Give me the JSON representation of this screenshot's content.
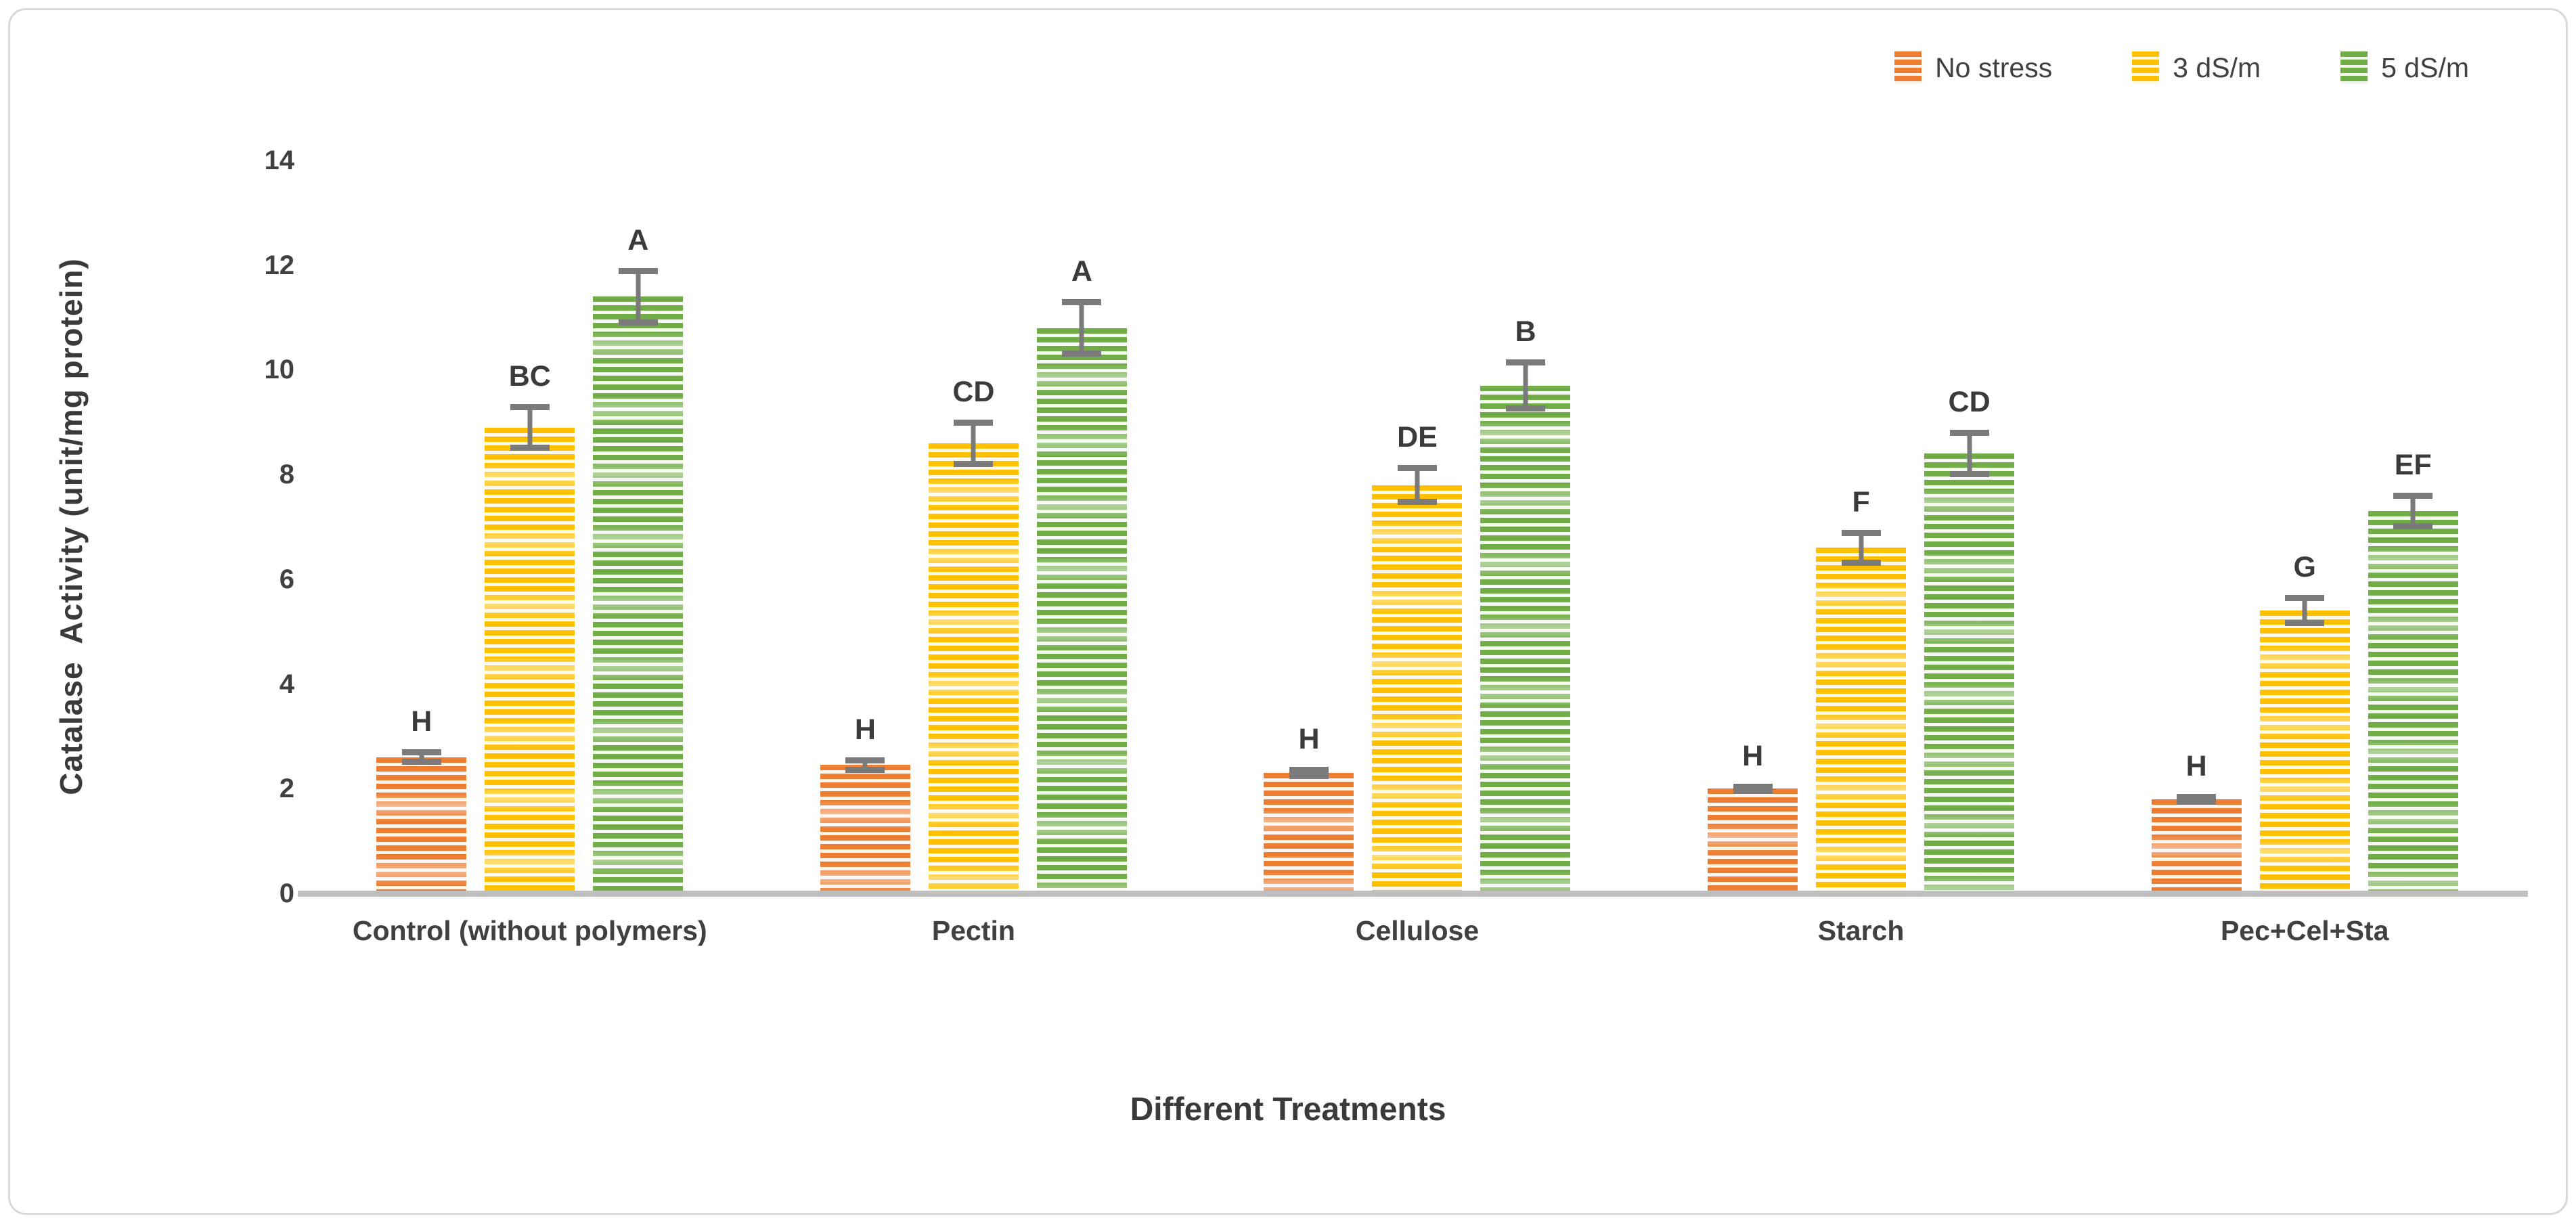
{
  "chart_data": {
    "type": "bar",
    "title": "",
    "xlabel": "Different Treatments",
    "ylabel": "Catalase  Activity (unit/mg protein)",
    "ylim": [
      0,
      14
    ],
    "yticks": [
      0,
      2,
      4,
      6,
      8,
      10,
      12,
      14
    ],
    "grid": false,
    "legend_position": "top-right",
    "categories": [
      "Control (without polymers)",
      "Pectin",
      "Cellulose",
      "Starch",
      "Pec+Cel+Sta"
    ],
    "series": [
      {
        "name": "No stress",
        "color": "#ED7D31",
        "values": [
          2.6,
          2.45,
          2.3,
          2.0,
          1.8
        ],
        "errors": [
          0.15,
          0.15,
          0.12,
          0.1,
          0.1
        ],
        "sig_letters": [
          "H",
          "H",
          "H",
          "H",
          "H"
        ]
      },
      {
        "name": "3 dS/m",
        "color": "#FFC000",
        "values": [
          8.9,
          8.6,
          7.8,
          6.6,
          5.4
        ],
        "errors": [
          0.45,
          0.45,
          0.38,
          0.34,
          0.3
        ],
        "sig_letters": [
          "BC",
          "CD",
          "DE",
          "F",
          "G"
        ]
      },
      {
        "name": "5 dS/m",
        "color": "#70AD47",
        "values": [
          11.4,
          10.8,
          9.7,
          8.4,
          7.3
        ],
        "errors": [
          0.55,
          0.55,
          0.5,
          0.45,
          0.35
        ],
        "sig_letters": [
          "A",
          "A",
          "B",
          "CD",
          "EF"
        ]
      }
    ],
    "style": {
      "axis_line_color": "#BFBFBF",
      "error_bar_color": "#7A7A7A",
      "text_color": "#404040"
    }
  }
}
